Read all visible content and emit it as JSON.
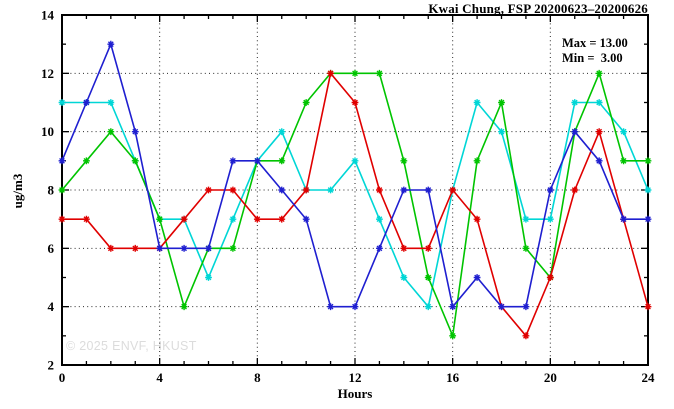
{
  "watermark": "© 2025 ENVF, HKUST",
  "chart_data": {
    "type": "line",
    "title": "Kwai Chung, FSP 20200623–20200626",
    "xlabel": "Hours",
    "ylabel": "ug/m3",
    "xlim": [
      0,
      24
    ],
    "ylim": [
      2,
      14
    ],
    "x_major_ticks": [
      0,
      4,
      8,
      12,
      16,
      20,
      24
    ],
    "x_minor_step": 1,
    "y_major_ticks": [
      2,
      4,
      6,
      8,
      10,
      12,
      14
    ],
    "y_minor_step": 1,
    "grid": true,
    "legend_position": "top-right-inside",
    "annotations": {
      "max": "Max = 13.00",
      "min": "Min =  3.00"
    },
    "x": [
      0,
      1,
      2,
      3,
      4,
      5,
      6,
      7,
      8,
      9,
      10,
      11,
      12,
      13,
      14,
      15,
      16,
      17,
      18,
      19,
      20,
      21,
      22,
      23,
      24
    ],
    "series": [
      {
        "name": "series-cyan",
        "color": "#00d6d6",
        "values": [
          11,
          11,
          11,
          9,
          7,
          7,
          5,
          7,
          9,
          10,
          8,
          8,
          9,
          7,
          5,
          4,
          8,
          11,
          10,
          7,
          7,
          11,
          11,
          10,
          8
        ]
      },
      {
        "name": "series-green",
        "color": "#00c400",
        "values": [
          8,
          9,
          10,
          9,
          7,
          4,
          6,
          6,
          9,
          9,
          11,
          12,
          12,
          12,
          9,
          5,
          3,
          9,
          11,
          6,
          5,
          10,
          12,
          9,
          9
        ]
      },
      {
        "name": "series-red",
        "color": "#e00000",
        "values": [
          7,
          7,
          6,
          6,
          6,
          7,
          8,
          8,
          7,
          7,
          8,
          12,
          11,
          8,
          6,
          6,
          8,
          7,
          4,
          3,
          5,
          8,
          10,
          7,
          4
        ]
      },
      {
        "name": "series-blue",
        "color": "#1f1fd0",
        "values": [
          9,
          11,
          13,
          10,
          6,
          6,
          6,
          9,
          9,
          8,
          7,
          4,
          4,
          6,
          8,
          8,
          4,
          5,
          4,
          4,
          8,
          10,
          9,
          7,
          7
        ]
      }
    ]
  }
}
